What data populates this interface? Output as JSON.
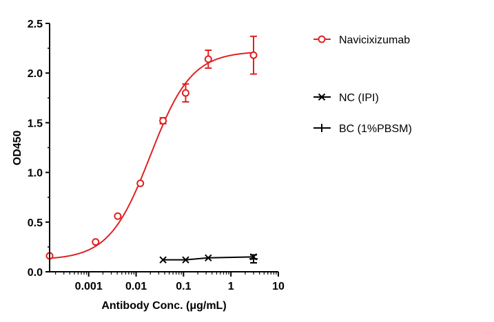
{
  "chart_data": {
    "type": "scatter",
    "xlabel": "Antibody Conc. (μg/mL)",
    "ylabel": "OD450",
    "xscale": "log",
    "xlim": [
      0.00015,
      10
    ],
    "ylim": [
      0,
      2.5
    ],
    "x_ticks": [
      0.001,
      0.01,
      0.1,
      1,
      10
    ],
    "x_tick_labels": [
      "0.001",
      "0.01",
      "0.1",
      "1",
      "10"
    ],
    "y_ticks": [
      0,
      0.5,
      1.0,
      1.5,
      2.0,
      2.5
    ],
    "y_tick_labels": [
      "0.0",
      "0.5",
      "1.0",
      "1.5",
      "2.0",
      "2.5"
    ],
    "grid": false,
    "legend_position": "right",
    "series": [
      {
        "name": "Navicixizumab",
        "color": "#e02020",
        "marker": "open-circle",
        "fit": "sigmoidal",
        "points": [
          {
            "x": 0.00015,
            "y": 0.16,
            "err": 0
          },
          {
            "x": 0.0014,
            "y": 0.3,
            "err": 0
          },
          {
            "x": 0.0041,
            "y": 0.56,
            "err": 0
          },
          {
            "x": 0.0123,
            "y": 0.89,
            "err": 0
          },
          {
            "x": 0.037,
            "y": 1.52,
            "err": 0.03
          },
          {
            "x": 0.111,
            "y": 1.8,
            "err": 0.09
          },
          {
            "x": 0.333,
            "y": 2.14,
            "err": 0.09
          },
          {
            "x": 3.0,
            "y": 2.18,
            "err": 0.19
          }
        ]
      },
      {
        "name": "NC (IPI)",
        "color": "#000000",
        "marker": "x",
        "fit": "line",
        "points": [
          {
            "x": 0.037,
            "y": 0.12,
            "err": 0
          },
          {
            "x": 0.111,
            "y": 0.12,
            "err": 0
          },
          {
            "x": 0.333,
            "y": 0.14,
            "err": 0
          },
          {
            "x": 3.0,
            "y": 0.15,
            "err": 0
          }
        ]
      },
      {
        "name": "BC (1%PBSM)",
        "color": "#000000",
        "marker": "plus",
        "fit": "none",
        "points": [
          {
            "x": 3.0,
            "y": 0.13,
            "err": 0.04
          }
        ]
      }
    ]
  }
}
